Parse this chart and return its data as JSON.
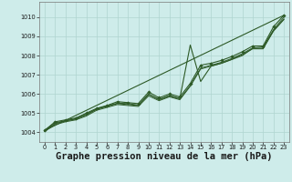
{
  "xlabel": "Graphe pression niveau de la mer (hPa)",
  "xlabel_fontsize": 7.5,
  "ylim": [
    1003.5,
    1010.8
  ],
  "xlim": [
    -0.5,
    23.5
  ],
  "yticks": [
    1004,
    1005,
    1006,
    1007,
    1008,
    1009,
    1010
  ],
  "xticks": [
    0,
    1,
    2,
    3,
    4,
    5,
    6,
    7,
    8,
    9,
    10,
    11,
    12,
    13,
    14,
    15,
    16,
    17,
    18,
    19,
    20,
    21,
    22,
    23
  ],
  "background_color": "#ceecea",
  "grid_color": "#afd4d0",
  "line_color": "#2d5a27",
  "series_main": [
    1004.1,
    1004.55,
    1004.65,
    1004.75,
    1005.0,
    1005.25,
    1005.4,
    1005.6,
    1005.55,
    1005.5,
    1006.1,
    1005.8,
    1006.0,
    1005.85,
    1006.55,
    1007.5,
    1007.6,
    1007.75,
    1007.95,
    1008.2,
    1008.5,
    1008.5,
    1009.5,
    1010.1
  ],
  "series_a": [
    1004.05,
    1004.45,
    1004.6,
    1004.7,
    1004.9,
    1005.2,
    1005.35,
    1005.5,
    1005.45,
    1005.4,
    1006.0,
    1005.7,
    1005.9,
    1005.75,
    1006.45,
    1007.35,
    1007.5,
    1007.65,
    1007.85,
    1008.1,
    1008.4,
    1008.45,
    1009.35,
    1010.0
  ],
  "series_b": [
    1004.05,
    1004.4,
    1004.55,
    1004.65,
    1004.85,
    1005.15,
    1005.3,
    1005.45,
    1005.4,
    1005.35,
    1005.9,
    1005.65,
    1005.85,
    1005.7,
    1006.4,
    1007.3,
    1007.45,
    1007.6,
    1007.8,
    1008.05,
    1008.35,
    1008.35,
    1009.3,
    1009.9
  ],
  "series_spike": [
    1004.1,
    1004.5,
    1004.6,
    1004.7,
    1004.95,
    1005.22,
    1005.38,
    1005.52,
    1005.5,
    1005.42,
    1005.98,
    1005.72,
    1005.92,
    1005.77,
    1008.55,
    1006.65,
    1007.45,
    1007.6,
    1007.8,
    1008.0,
    1008.38,
    1008.38,
    1009.28,
    1009.88
  ],
  "trend_y0": 1004.1,
  "trend_y1": 1010.1
}
